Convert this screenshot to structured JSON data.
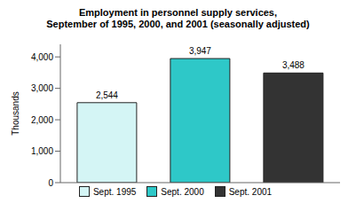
{
  "chart_data": {
    "type": "bar",
    "title": "Employment in personnel supply services,\nSeptember of 1995, 2000, and 2001 (seasonally adjusted)",
    "categories": [
      "Sept. 1995",
      "Sept. 2000",
      "Sept. 2001"
    ],
    "values": [
      2544,
      3947,
      3488
    ],
    "value_labels": [
      "2,544",
      "3,947",
      "3,488"
    ],
    "colors": [
      "#d4f5f5",
      "#2ec8c8",
      "#333333"
    ],
    "ylabel": "Thousands",
    "ylim": [
      0,
      4400
    ],
    "yticks": [
      0,
      {
        "value": 1000,
        "label": "1,000"
      },
      {
        "value": 2000,
        "label": "2,000"
      },
      {
        "value": 3000,
        "label": "3,000"
      },
      {
        "value": 4000,
        "label": "4,000"
      }
    ],
    "data_labels": true,
    "tick_labels": "y",
    "legend": "bottom",
    "grid": false
  }
}
